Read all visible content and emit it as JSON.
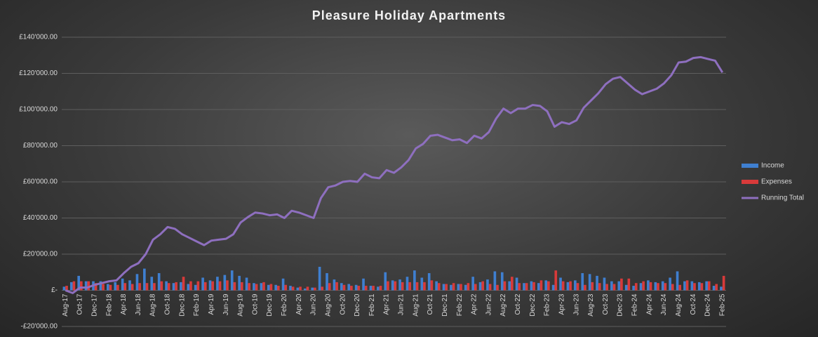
{
  "chart_data": {
    "type": "bar_line",
    "title": "Pleasure Holiday Apartments",
    "categories": [
      "Aug-17",
      null,
      "Oct-17",
      null,
      "Dec-17",
      null,
      "Feb-18",
      null,
      "Apr-18",
      null,
      "Jun-18",
      null,
      "Aug-18",
      null,
      "Oct-18",
      null,
      "Dec-18",
      null,
      "Feb-19",
      null,
      "Apr-19",
      null,
      "Jun-19",
      null,
      "Aug-19",
      null,
      "Oct-19",
      null,
      "Dec-19",
      null,
      "Feb-20",
      null,
      "Apr-20",
      null,
      "Jun-20",
      null,
      "Aug-20",
      null,
      "Oct-20",
      null,
      "Dec-20",
      null,
      "Feb-21",
      null,
      "Apr-21",
      null,
      "Jun-21",
      null,
      "Aug-21",
      null,
      "Oct-21",
      null,
      "Dec-21",
      null,
      "Feb-22",
      null,
      "Apr-22",
      null,
      "Jun-22",
      null,
      "Aug-22",
      null,
      "Oct-22",
      null,
      "Dec-22",
      null,
      "Feb-23",
      null,
      "Apr-23",
      null,
      "Jun-23",
      null,
      "Aug-23",
      null,
      "Oct-23",
      null,
      "Dec-23",
      null,
      "Feb-24",
      null,
      "Apr-24",
      null,
      "Jun-24",
      null,
      "Aug-24",
      null,
      "Oct-24",
      null,
      "Dec-24",
      null,
      "Feb-25"
    ],
    "series": [
      {
        "name": "Income",
        "type": "bar",
        "color": "#3f7fd0",
        "values": [
          2000,
          4500,
          8000,
          5000,
          5000,
          5000,
          3500,
          4500,
          6500,
          5500,
          9000,
          12000,
          7500,
          9500,
          5000,
          4000,
          4500,
          3500,
          3000,
          7000,
          5500,
          7500,
          8500,
          11000,
          8000,
          7000,
          4000,
          4000,
          3000,
          3000,
          6500,
          2500,
          1500,
          1000,
          1500,
          13000,
          9500,
          6000,
          4000,
          3500,
          3000,
          6500,
          2500,
          2000,
          10000,
          5500,
          6000,
          7500,
          11000,
          7000,
          9500,
          5000,
          3500,
          3000,
          3500,
          3000,
          7500,
          4500,
          6000,
          10500,
          10000,
          5000,
          7000,
          4000,
          5000,
          4000,
          5500,
          3000,
          7000,
          4500,
          5500,
          9500,
          9000,
          8000,
          7000,
          5000,
          5000,
          3000,
          2500,
          4000,
          5500,
          4500,
          5000,
          7000,
          10500,
          5000,
          5000,
          4500,
          5000,
          2500,
          2000
        ]
      },
      {
        "name": "Expenses",
        "type": "bar",
        "color": "#d83a3a",
        "values": [
          2500,
          5000,
          5000,
          5000,
          4000,
          3500,
          3000,
          3000,
          4000,
          3500,
          4000,
          4000,
          4000,
          5000,
          4000,
          4500,
          7500,
          5000,
          5000,
          4500,
          5000,
          5000,
          5500,
          4500,
          4500,
          4000,
          3500,
          4500,
          3500,
          2500,
          3000,
          2000,
          2000,
          2000,
          1500,
          2000,
          4000,
          4500,
          3000,
          2500,
          2500,
          2500,
          2500,
          2500,
          5000,
          5000,
          4500,
          4500,
          4500,
          4500,
          5500,
          4000,
          3500,
          4000,
          3500,
          4000,
          3500,
          5000,
          3500,
          3000,
          5000,
          7500,
          4000,
          4000,
          4500,
          5500,
          5000,
          11000,
          5000,
          5000,
          4000,
          3000,
          4500,
          4000,
          3500,
          3500,
          6500,
          6500,
          4000,
          5000,
          4500,
          4000,
          4000,
          3500,
          3000,
          5500,
          4000,
          4000,
          5000,
          3500,
          8000
        ]
      },
      {
        "name": "Running Total",
        "type": "line",
        "color": "#8e6fbf",
        "values": [
          0,
          -1500,
          1500,
          1500,
          3000,
          4000,
          5000,
          5500,
          9500,
          13000,
          15000,
          20000,
          28000,
          31000,
          35000,
          34000,
          31000,
          29000,
          27000,
          25000,
          27500,
          28000,
          28500,
          31000,
          37500,
          40500,
          43000,
          42500,
          41500,
          42000,
          40000,
          44000,
          43000,
          41500,
          40000,
          51000,
          57000,
          58000,
          60000,
          60500,
          60000,
          64500,
          62500,
          62000,
          66500,
          65000,
          68000,
          72000,
          78500,
          81000,
          85500,
          86000,
          84500,
          83000,
          83500,
          81500,
          85500,
          84000,
          87500,
          95000,
          100500,
          98000,
          100500,
          100500,
          102500,
          102000,
          99000,
          90500,
          93000,
          92000,
          94000,
          101000,
          105000,
          109000,
          114000,
          117000,
          118000,
          114500,
          111000,
          108500,
          110000,
          111500,
          114500,
          119000,
          126000,
          126500,
          128500,
          129000,
          128000,
          127000,
          120500
        ]
      }
    ],
    "ylim": [
      -20000,
      140000
    ],
    "yticks": [
      {
        "value": -20000,
        "label": "-£20'000.00"
      },
      {
        "value": 0,
        "label": "£-"
      },
      {
        "value": 20000,
        "label": "£20'000.00"
      },
      {
        "value": 40000,
        "label": "£40'000.00"
      },
      {
        "value": 60000,
        "label": "£60'000.00"
      },
      {
        "value": 80000,
        "label": "£80'000.00"
      },
      {
        "value": 100000,
        "label": "£100'000.00"
      },
      {
        "value": 120000,
        "label": "£120'000.00"
      },
      {
        "value": 140000,
        "label": "£140'000.00"
      }
    ],
    "grid": true,
    "legend": "right"
  }
}
